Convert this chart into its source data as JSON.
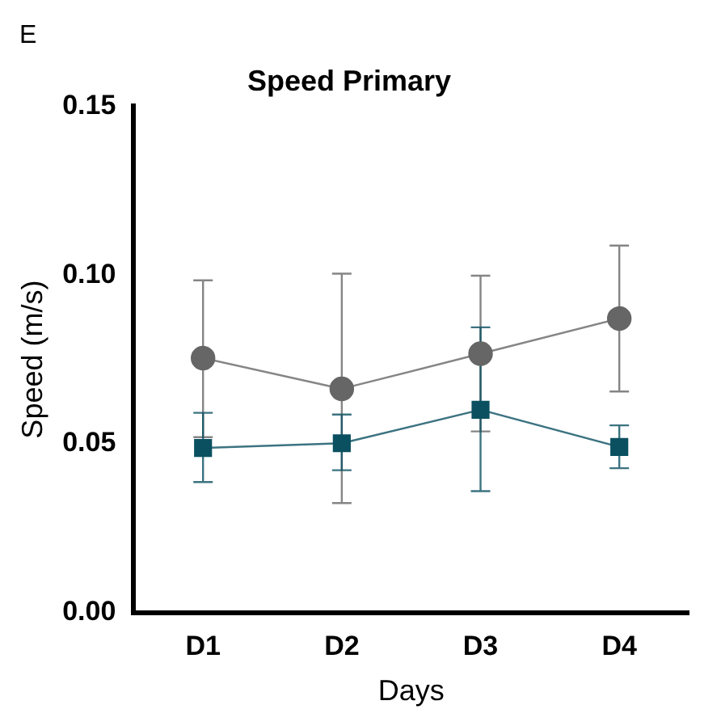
{
  "chart_data": {
    "type": "line",
    "title": "Speed Primary",
    "xlabel": "Days",
    "ylabel": "Speed (m/s)",
    "annotations": [
      "E"
    ],
    "categories": [
      "D1",
      "D2",
      "D3",
      "D4"
    ],
    "series": [
      {
        "color": "#666666",
        "values": [
          0.0754,
          0.0663,
          0.0767,
          0.0871
        ],
        "errors": [
          [
            0.052,
            0.0984
          ],
          [
            0.0325,
            0.1004
          ],
          [
            0.0537,
            0.0998
          ],
          [
            0.0655,
            0.1087
          ]
        ]
      },
      {
        "color": "#0b5061",
        "marker": "square",
        "values": [
          0.0488,
          0.0502,
          0.0601,
          0.0491
        ],
        "errors": [
          [
            0.0387,
            0.0592
          ],
          [
            0.0422,
            0.0587
          ],
          [
            0.036,
            0.0845
          ],
          [
            0.0428,
            0.0555
          ]
        ]
      }
    ],
    "ylim": [
      0,
      0.15
    ],
    "yticks": [
      {
        "value": 0,
        "label": "0.00"
      },
      0.05,
      {
        "value": 0.1,
        "label": "0.10"
      },
      0.15
    ],
    "grid": false,
    "legend": false,
    "marker": "circle"
  }
}
